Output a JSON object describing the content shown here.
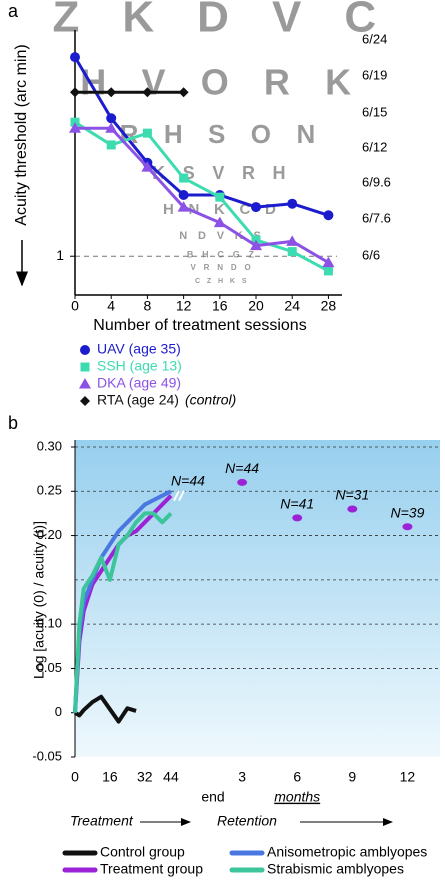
{
  "chart_data": [
    {
      "panel": "a",
      "type": "line",
      "ylabel": "Acuity threshold (arc min)",
      "xlabel": "Number of treatment sessions",
      "x": [
        0,
        4,
        8,
        12,
        16,
        20,
        24,
        28
      ],
      "xlim": [
        0,
        29.5
      ],
      "xticks": [
        0,
        4,
        8,
        12,
        16,
        20,
        24,
        28
      ],
      "log_y": true,
      "ylim": [
        0.78,
        4.26
      ],
      "yticks": [
        1
      ],
      "grid": "dashed",
      "y2lim": [
        0.78,
        4.26
      ],
      "y2ticks": [
        {
          "value": 4,
          "label": "6/24"
        },
        {
          "value": 3.17,
          "label": "6/19"
        },
        {
          "value": 2.5,
          "label": "6/15"
        },
        {
          "value": 2,
          "label": "6/12"
        },
        {
          "value": 1.6,
          "label": "6/9.6"
        },
        {
          "value": 1.27,
          "label": "6/7.6"
        },
        {
          "value": 1,
          "label": "6/6"
        }
      ],
      "chart_letters": [
        "Z K D V C",
        "H V O R K",
        "R H S O N",
        "K S V R H",
        "H N K C D",
        "N D V K S",
        "B H C G Z",
        "V R N D O",
        "C Z H K S"
      ],
      "series": [
        {
          "name": "UAV (age 35)",
          "color": "#1c1ccf",
          "marker": "circle",
          "values": [
            3.58,
            2.42,
            1.82,
            1.48,
            1.48,
            1.37,
            1.4,
            1.3
          ]
        },
        {
          "name": "SSH (age 13)",
          "color": "#3ddbb0",
          "marker": "square",
          "values": [
            2.36,
            2.04,
            2.2,
            1.65,
            1.46,
            1.11,
            1.03,
            0.91
          ]
        },
        {
          "name": "DKA (age 49)",
          "color": "#8c52e6",
          "marker": "triangle",
          "values": [
            2.27,
            2.27,
            1.77,
            1.37,
            1.24,
            1.07,
            1.1,
            0.96
          ]
        },
        {
          "name": "RTA (age 24)",
          "color": "#111111",
          "marker": "diamond",
          "values": [
            2.86,
            2.86,
            2.86,
            2.86,
            null,
            null,
            null,
            null
          ]
        }
      ],
      "legend_note": "(control)"
    },
    {
      "panel": "b",
      "type": "line",
      "ylabel": "Log [acuity (0) / acuity (t)]",
      "ylim": [
        -0.05,
        0.3
      ],
      "yticks": [
        {
          "value": 0.3,
          "label": "0.30"
        },
        {
          "value": 0.25,
          "label": "0.25"
        },
        {
          "value": 0.2,
          "label": "0.20"
        },
        {
          "value": 0.1,
          "label": "0.10"
        },
        0.05,
        0,
        -0.05
      ],
      "grid_lines": [
        0.3,
        0.25,
        0.2,
        0.15,
        0.1,
        0.05
      ],
      "x": [
        0,
        2,
        4,
        8,
        12,
        16,
        20,
        24,
        28,
        32,
        36,
        40,
        44
      ],
      "xlim": [
        0,
        48
      ],
      "xticks": [
        0,
        16,
        32,
        44
      ],
      "end_label": "end",
      "end_n_label": "N=44",
      "series": [
        {
          "name": "Control group",
          "color": "#111111",
          "values": [
            0,
            -0.003,
            0.003,
            0.012,
            0.018,
            0.004,
            -0.01,
            0.005,
            0.002,
            null,
            null,
            null,
            null
          ]
        },
        {
          "name": "Treatment group",
          "color": "#9b22d6",
          "values": [
            0,
            0.08,
            0.115,
            0.145,
            0.16,
            0.175,
            0.19,
            0.2,
            0.205,
            0.215,
            0.225,
            0.235,
            0.245
          ]
        },
        {
          "name": "Anisometropic amblyopes",
          "color": "#4a78e0",
          "values": [
            0,
            0.09,
            0.125,
            0.15,
            0.175,
            0.19,
            0.205,
            0.215,
            0.225,
            0.235,
            0.24,
            0.245,
            0.25
          ]
        },
        {
          "name": "Strabismic amblyopes",
          "color": "#3cc49a",
          "values": [
            0,
            0.1,
            0.14,
            0.155,
            0.175,
            0.15,
            0.19,
            0.2,
            0.215,
            0.225,
            0.225,
            0.215,
            0.225
          ]
        }
      ],
      "retention": {
        "xlabel": "months",
        "xlim": [
          0,
          13.5
        ],
        "xticks": [
          3,
          6,
          9,
          12
        ],
        "x": [
          3,
          6,
          9,
          12
        ],
        "values": [
          0.26,
          0.22,
          0.23,
          0.21
        ],
        "n_labels": [
          "N=44",
          "N=41",
          "N=31",
          "N=39"
        ],
        "color": "#9b22d6"
      },
      "phase_labels": [
        "Treatment",
        "Retention"
      ]
    }
  ]
}
